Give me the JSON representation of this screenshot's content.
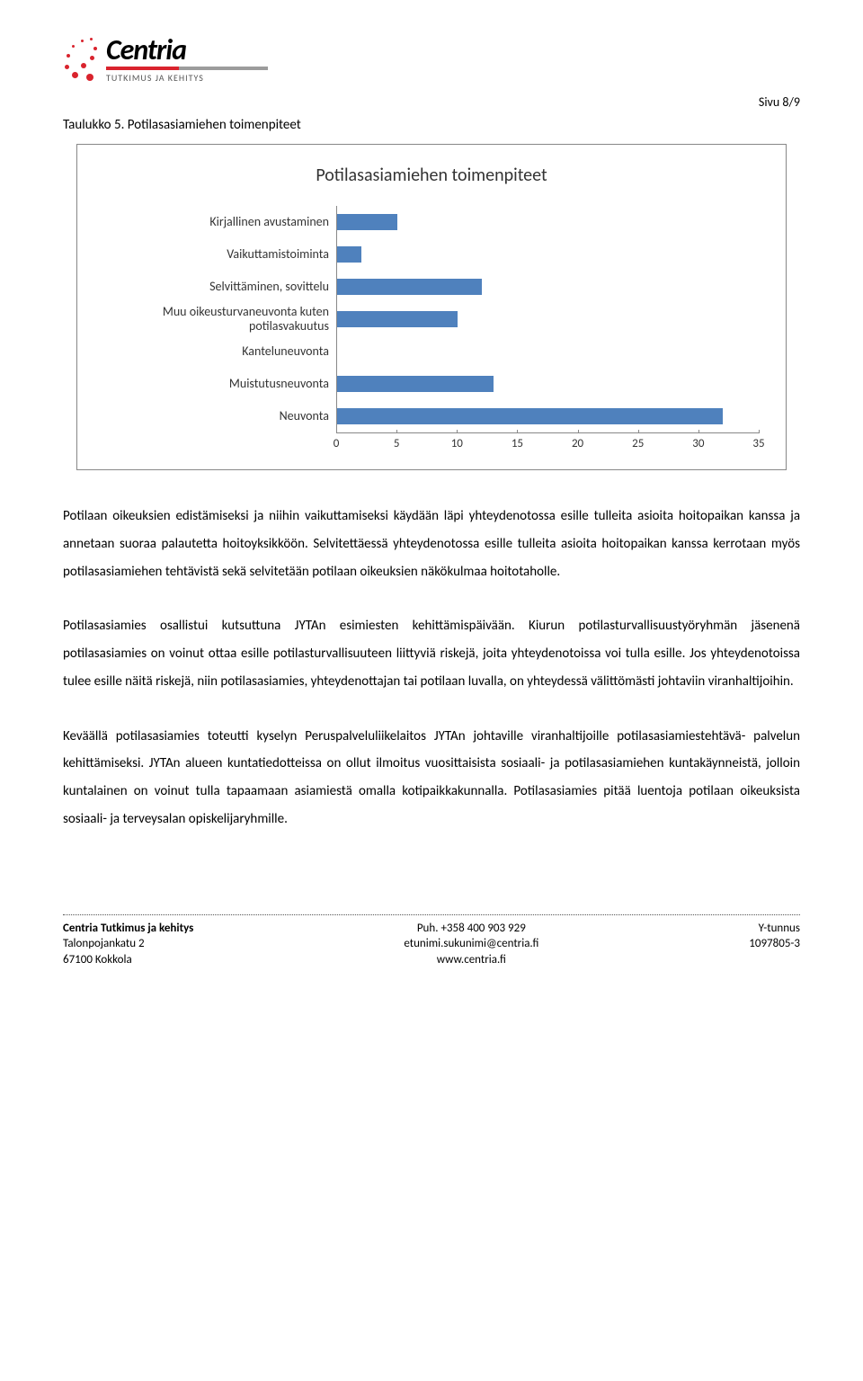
{
  "page_number": "Sivu 8/9",
  "logo": {
    "name": "Centria",
    "subtitle": "TUTKIMUS JA KEHITYS",
    "dot_color": "#d9232d",
    "sep_left": "#d9232d",
    "sep_right": "#9c9c9c"
  },
  "caption": "Taulukko 5. Potilasasiamiehen toimenpiteet",
  "chart": {
    "type": "bar",
    "title": "Potilasasiamiehen toimenpiteet",
    "bar_color": "#4f81bd",
    "axis_color": "#888888",
    "label_fontsize": 14,
    "xmax": 35,
    "ticks": [
      0,
      5,
      10,
      15,
      20,
      25,
      30,
      35
    ],
    "categories": [
      {
        "label": "Kirjallinen avustaminen",
        "value": 5
      },
      {
        "label": "Vaikuttamistoiminta",
        "value": 2
      },
      {
        "label": "Selvittäminen, sovittelu",
        "value": 12
      },
      {
        "label": "Muu oikeusturvaneuvonta kuten potilasvakuutus",
        "value": 10
      },
      {
        "label": "Kanteluneuvonta",
        "value": 0
      },
      {
        "label": "Muistutusneuvonta",
        "value": 13
      },
      {
        "label": "Neuvonta",
        "value": 32
      }
    ]
  },
  "paragraphs": [
    "Potilaan oikeuksien edistämiseksi ja niihin vaikuttamiseksi käydään läpi yhteydenotossa esille tulleita asioita hoitopaikan kanssa ja annetaan suoraa palautetta hoitoyksikköön. Selvitettäessä yhteydenotossa esille tulleita asioita hoitopaikan kanssa kerrotaan myös potilasasiamiehen tehtävistä sekä selvitetään potilaan oikeuksien näkökulmaa hoitotaholle.",
    "Potilasasiamies osallistui kutsuttuna JYTAn esimiesten kehittämispäivään. Kiurun potilasturvallisuustyöryhmän jäsenenä potilasasiamies on voinut ottaa esille potilasturvallisuuteen liittyviä riskejä, joita yhteydenotoissa voi tulla esille. Jos yhteydenotoissa tulee esille näitä riskejä, niin potilasasiamies, yhteydenottajan tai potilaan luvalla, on yhteydessä välittömästi johtaviin viranhaltijoihin.",
    "Keväällä potilasasiamies toteutti kyselyn Peruspalveluliikelaitos JYTAn johtaville viranhaltijoille potilasasiamiestehtävä- palvelun kehittämiseksi. JYTAn alueen kuntatiedotteissa on ollut ilmoitus vuosittaisista sosiaali- ja potilasasiamiehen kuntakäynneistä, jolloin kuntalainen on voinut tulla tapaamaan asiamiestä omalla kotipaikkakunnalla. Potilasasiamies pitää luentoja potilaan oikeuksista sosiaali- ja terveysalan opiskelijaryhmille."
  ],
  "footer": {
    "left": [
      "Centria Tutkimus ja kehitys",
      "Talonpojankatu 2",
      "67100 Kokkola"
    ],
    "center": [
      "Puh. +358 400 903 929",
      "etunimi.sukunimi@centria.fi",
      "www.centria.fi"
    ],
    "right": [
      "Y-tunnus",
      "1097805-3"
    ]
  }
}
